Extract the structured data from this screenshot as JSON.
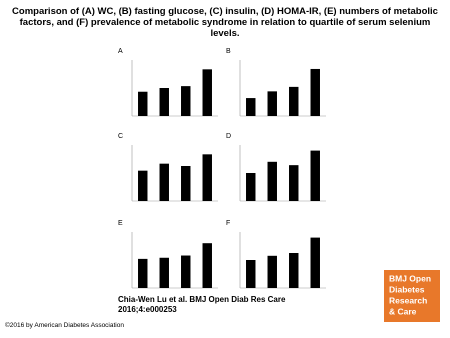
{
  "title": "Comparison of (A) WC, (B) fasting glucose, (C) insulin, (D) HOMA-IR, (E) numbers of metabolic factors, and (F) prevalence of metabolic syndrome in relation to quartile of serum selenium levels.",
  "citation": [
    "Chia-Wen Lu et al. BMJ Open Diab Res Care",
    "2016;4:e000253"
  ],
  "logo": [
    "BMJ Open",
    "Diabetes",
    "Research",
    "& Care"
  ],
  "copyright": "©2016 by American Diabetes Association",
  "chart_data": [
    {
      "type": "bar",
      "panel": "A",
      "values": [
        13,
        15,
        16,
        25
      ],
      "ylim": [
        0,
        30
      ],
      "color": "#000000"
    },
    {
      "type": "bar",
      "panel": "B",
      "values": [
        8,
        11,
        13,
        21
      ],
      "ylim": [
        0,
        25
      ],
      "color": "#000000"
    },
    {
      "type": "bar",
      "panel": "C",
      "values": [
        6.5,
        8,
        7.5,
        10
      ],
      "ylim": [
        0,
        12
      ],
      "color": "#000000"
    },
    {
      "type": "bar",
      "panel": "D",
      "values": [
        2.5,
        3.5,
        3.2,
        4.5
      ],
      "ylim": [
        0,
        5
      ],
      "color": "#000000"
    },
    {
      "type": "bar",
      "panel": "E",
      "values": [
        2.6,
        2.7,
        2.9,
        4
      ],
      "ylim": [
        0,
        5
      ],
      "color": "#000000"
    },
    {
      "type": "bar",
      "panel": "F",
      "values": [
        20,
        23,
        25,
        36
      ],
      "ylim": [
        0,
        40
      ],
      "color": "#000000"
    }
  ]
}
